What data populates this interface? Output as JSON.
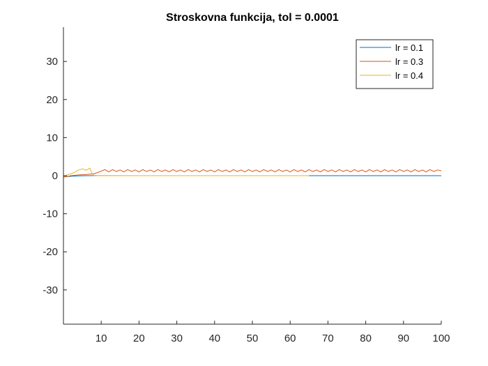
{
  "chart_data": {
    "type": "line",
    "title": "Stroskovna funkcija, tol = 0.0001",
    "xlabel": "",
    "ylabel": "",
    "xlim": [
      0,
      100
    ],
    "ylim": [
      -39,
      39
    ],
    "xticks": [
      10,
      20,
      30,
      40,
      50,
      60,
      70,
      80,
      90,
      100
    ],
    "yticks": [
      -30,
      -20,
      -10,
      0,
      10,
      20,
      30
    ],
    "grid": false,
    "legend_position": "top-right",
    "series": [
      {
        "name": "lr = 0.1",
        "color": "#0072BD",
        "x": [
          0,
          2,
          4,
          6,
          8,
          10,
          20,
          40,
          60,
          80,
          100
        ],
        "y": [
          -0.3,
          -0.15,
          -0.05,
          0.0,
          0.02,
          0.02,
          0.01,
          0.0,
          0.0,
          0.0,
          0.0
        ]
      },
      {
        "name": "lr = 0.3",
        "color": "#D95319",
        "x": [
          0,
          2,
          4,
          6,
          8,
          9,
          10,
          11,
          12,
          13,
          14,
          15,
          16,
          17,
          18,
          19,
          20,
          21,
          22,
          23,
          24,
          25,
          26,
          27,
          28,
          29,
          30,
          31,
          32,
          33,
          34,
          35,
          36,
          37,
          38,
          39,
          40,
          41,
          42,
          43,
          44,
          45,
          46,
          47,
          48,
          49,
          50,
          51,
          52,
          53,
          54,
          55,
          56,
          57,
          58,
          59,
          60,
          61,
          62,
          63,
          64,
          65,
          66,
          67,
          68,
          69,
          70,
          71,
          72,
          73,
          74,
          75,
          76,
          77,
          78,
          79,
          80,
          81,
          82,
          83,
          84,
          85,
          86,
          87,
          88,
          89,
          90,
          91,
          92,
          93,
          94,
          95,
          96,
          97,
          98,
          99,
          100
        ],
        "y": [
          -0.4,
          0.0,
          0.2,
          0.3,
          0.5,
          0.8,
          1.2,
          1.6,
          1.0,
          1.6,
          1.1,
          1.5,
          1.0,
          1.6,
          1.1,
          1.5,
          1.0,
          1.6,
          1.1,
          1.5,
          1.0,
          1.6,
          1.1,
          1.5,
          1.0,
          1.6,
          1.1,
          1.5,
          1.0,
          1.6,
          1.1,
          1.5,
          1.0,
          1.6,
          1.1,
          1.5,
          1.0,
          1.6,
          1.1,
          1.5,
          1.0,
          1.6,
          1.1,
          1.5,
          1.0,
          1.6,
          1.1,
          1.5,
          1.0,
          1.6,
          1.1,
          1.5,
          1.0,
          1.6,
          1.1,
          1.5,
          1.0,
          1.6,
          1.1,
          1.5,
          1.0,
          1.6,
          1.1,
          1.5,
          1.0,
          1.6,
          1.1,
          1.5,
          1.0,
          1.6,
          1.1,
          1.5,
          1.0,
          1.6,
          1.1,
          1.5,
          1.0,
          1.6,
          1.1,
          1.5,
          1.0,
          1.6,
          1.1,
          1.5,
          1.0,
          1.6,
          1.1,
          1.5,
          1.0,
          1.6,
          1.1,
          1.5,
          1.0,
          1.6,
          1.1,
          1.5,
          1.3
        ]
      },
      {
        "name": "lr = 0.4",
        "color": "#EDB120",
        "x": [
          0,
          1,
          2,
          3,
          4,
          5,
          6,
          7,
          7.5,
          8,
          9,
          10,
          20,
          30,
          40,
          50,
          60,
          65
        ],
        "y": [
          -0.3,
          0.2,
          0.5,
          0.9,
          1.5,
          1.8,
          1.4,
          2.0,
          0.8,
          0.1,
          0.0,
          0.0,
          0.0,
          0.0,
          0.0,
          0.0,
          0.0,
          0.0
        ]
      }
    ]
  }
}
